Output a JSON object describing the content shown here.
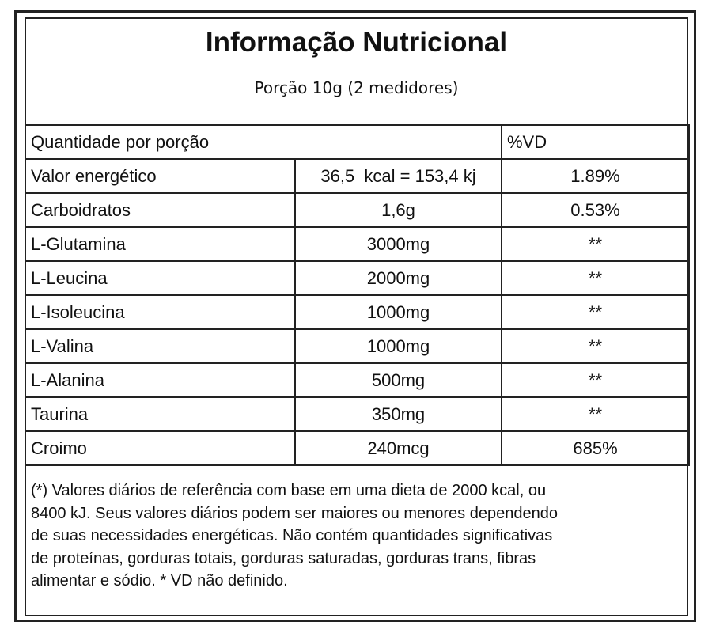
{
  "header": {
    "title": "Informação Nutricional",
    "subtitle": "Porção 10g (2 medidores)"
  },
  "table": {
    "header": [
      "Quantidade por porção",
      "%VD"
    ],
    "rows": [
      [
        "Valor energético",
        "36,5  kcal = 153,4 kj",
        "1.89%"
      ],
      [
        "Carboidratos",
        "1,6g",
        "0.53%"
      ],
      [
        "L-Glutamina",
        "3000mg",
        "**"
      ],
      [
        "L-Leucina",
        "2000mg",
        "**"
      ],
      [
        "L-Isoleucina",
        "1000mg",
        "**"
      ],
      [
        "L-Valina",
        "1000mg",
        "**"
      ],
      [
        "L-Alanina",
        "500mg",
        "**"
      ],
      [
        "Taurina",
        "350mg",
        "**"
      ],
      [
        "Croimo",
        "240mcg",
        "685%"
      ]
    ]
  },
  "footnote": [
    "(*) Valores diários de referência com base em uma dieta de 2000 kcal, ou",
    "8400 kJ. Seus valores diários podem ser maiores ou menores dependendo",
    "de suas necessidades energéticas. Não contém quantidades significativas",
    "de proteínas, gorduras totais, gorduras saturadas, gorduras trans, fibras",
    "alimentar e sódio. * VD não definido."
  ]
}
